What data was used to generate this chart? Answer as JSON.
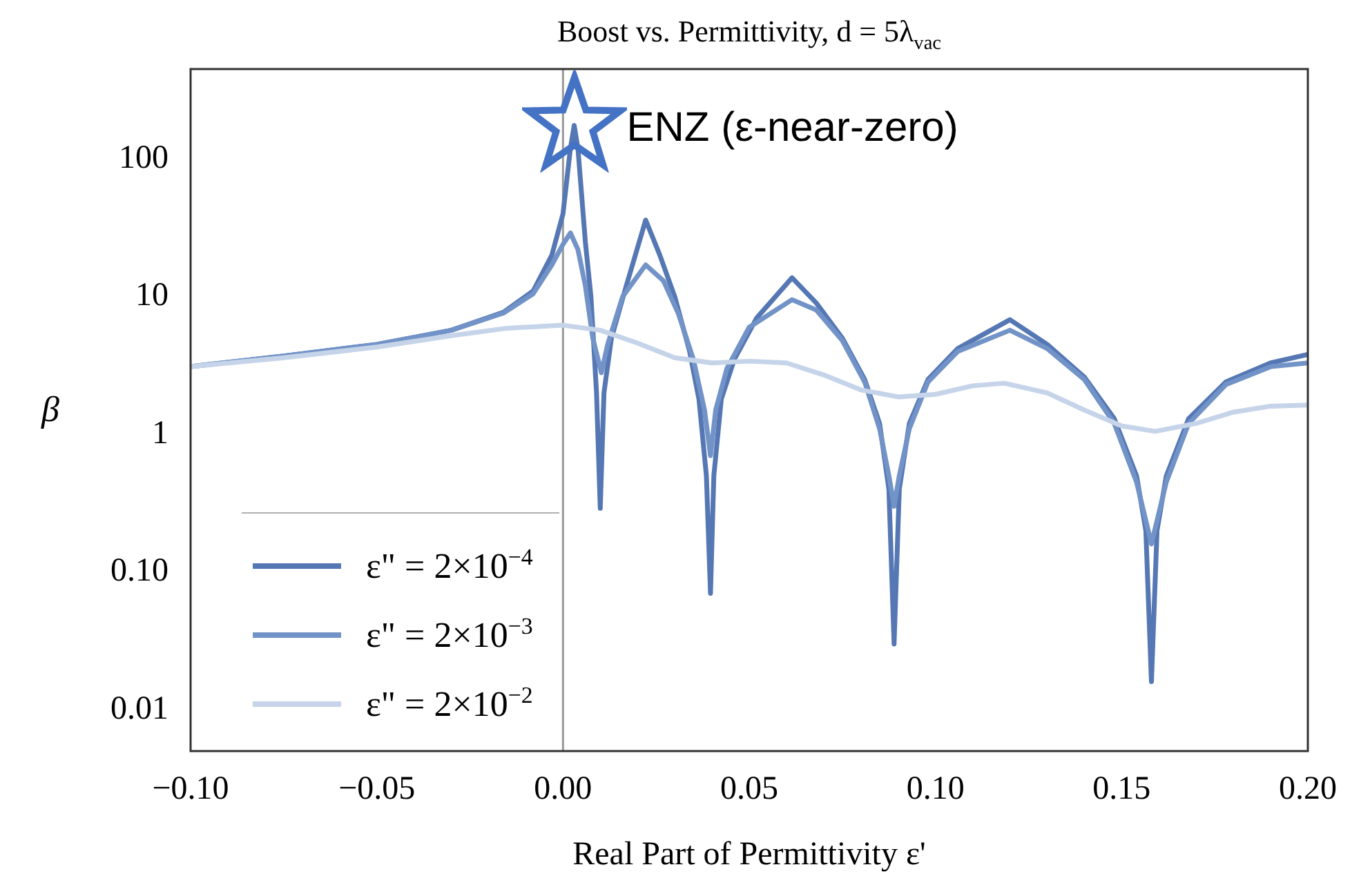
{
  "chart_data": {
    "type": "line",
    "title": "Boost vs. Permittivity, d = 5λ$_{vac}$",
    "xlabel": "Real Part of Permittivity ε'",
    "ylabel": "β",
    "log": "y",
    "legend": "bottom left",
    "xlim": [
      -0.1,
      0.2
    ],
    "ylim": [
      0.005,
      450
    ],
    "xticks": [
      {
        "value": -0.1,
        "label": "−0.10"
      },
      {
        "value": -0.05,
        "label": "−0.05"
      },
      {
        "value": 0,
        "label": "0.00"
      },
      {
        "value": 0.05,
        "label": "0.05"
      },
      {
        "value": 0.1,
        "label": "0.10"
      },
      {
        "value": 0.15,
        "label": "0.15"
      },
      {
        "value": 0.2,
        "label": "0.20"
      }
    ],
    "yticks": [
      {
        "value": 0.01,
        "label": "0.01"
      },
      {
        "value": 0.1,
        "label": "0.10"
      },
      1,
      10,
      100
    ],
    "ref_lines": [
      {
        "axis": "x",
        "value": 0,
        "color": "#999999"
      }
    ],
    "annotations": [
      {
        "text": "ENZ (ε-near-zero)",
        "x": 0.003,
        "y": 175
      }
    ],
    "series": [
      {
        "name": "ε\" = 2×10$^{−4}$",
        "color": "#5577b4",
        "x": [
          -0.1,
          -0.075,
          -0.05,
          -0.03,
          -0.016,
          -0.008,
          -0.003,
          0,
          0.002,
          0.003,
          0.004,
          0.006,
          0.0075,
          0.009,
          0.01,
          0.011,
          0.013,
          0.017,
          0.0222,
          0.026,
          0.03,
          0.034,
          0.0365,
          0.0385,
          0.0396,
          0.0405,
          0.0425,
          0.046,
          0.052,
          0.0615,
          0.068,
          0.075,
          0.081,
          0.085,
          0.0875,
          0.0889,
          0.0903,
          0.093,
          0.098,
          0.106,
          0.12,
          0.13,
          0.14,
          0.148,
          0.154,
          0.1565,
          0.158,
          0.1595,
          0.162,
          0.168,
          0.178,
          0.19,
          0.2
        ],
        "values": [
          3.1,
          3.7,
          4.5,
          5.7,
          7.7,
          11,
          20,
          40,
          120,
          175,
          120,
          25,
          10,
          2,
          0.29,
          2,
          5,
          12,
          36,
          20,
          10,
          4,
          1.8,
          0.5,
          0.07,
          0.5,
          1.8,
          3.5,
          7,
          13.7,
          9,
          5,
          2.5,
          1.2,
          0.4,
          0.03,
          0.4,
          1.2,
          2.5,
          4.2,
          6.8,
          4.5,
          2.6,
          1.3,
          0.5,
          0.2,
          0.016,
          0.2,
          0.5,
          1.3,
          2.4,
          3.3,
          3.8
        ]
      },
      {
        "name": "ε\" = 2×10$^{−3}$",
        "color": "#7293c7",
        "x": [
          -0.1,
          -0.075,
          -0.05,
          -0.03,
          -0.016,
          -0.008,
          -0.003,
          0,
          0.002,
          0.004,
          0.006,
          0.008,
          0.0103,
          0.012,
          0.016,
          0.0222,
          0.027,
          0.031,
          0.035,
          0.038,
          0.0396,
          0.041,
          0.044,
          0.05,
          0.0615,
          0.068,
          0.075,
          0.081,
          0.085,
          0.0875,
          0.0889,
          0.0903,
          0.093,
          0.098,
          0.106,
          0.12,
          0.13,
          0.14,
          0.148,
          0.154,
          0.158,
          0.162,
          0.168,
          0.178,
          0.19,
          0.2
        ],
        "values": [
          3.1,
          3.7,
          4.5,
          5.7,
          7.6,
          10.5,
          17,
          24,
          29,
          22,
          12,
          5,
          2.8,
          4.5,
          10,
          17,
          13,
          7.5,
          3.5,
          1.5,
          0.7,
          1.5,
          3,
          6,
          9.5,
          8,
          4.8,
          2.4,
          1.1,
          0.5,
          0.3,
          0.5,
          1.1,
          2.4,
          4,
          5.7,
          4.2,
          2.5,
          1.2,
          0.45,
          0.16,
          0.45,
          1.2,
          2.3,
          3.1,
          3.3
        ]
      },
      {
        "name": "ε\" = 2×10$^{−2}$",
        "color": "#c6d4ea",
        "x": [
          -0.1,
          -0.075,
          -0.05,
          -0.03,
          -0.015,
          0,
          0.01,
          0.02,
          0.03,
          0.04,
          0.05,
          0.06,
          0.07,
          0.08,
          0.09,
          0.1,
          0.11,
          0.1185,
          0.13,
          0.14,
          0.15,
          0.159,
          0.17,
          0.18,
          0.19,
          0.2
        ],
        "values": [
          3.1,
          3.6,
          4.3,
          5.2,
          5.9,
          6.2,
          5.7,
          4.6,
          3.6,
          3.3,
          3.4,
          3.3,
          2.7,
          2.1,
          1.87,
          1.95,
          2.25,
          2.35,
          2,
          1.5,
          1.15,
          1.05,
          1.2,
          1.45,
          1.6,
          1.63
        ]
      }
    ]
  }
}
